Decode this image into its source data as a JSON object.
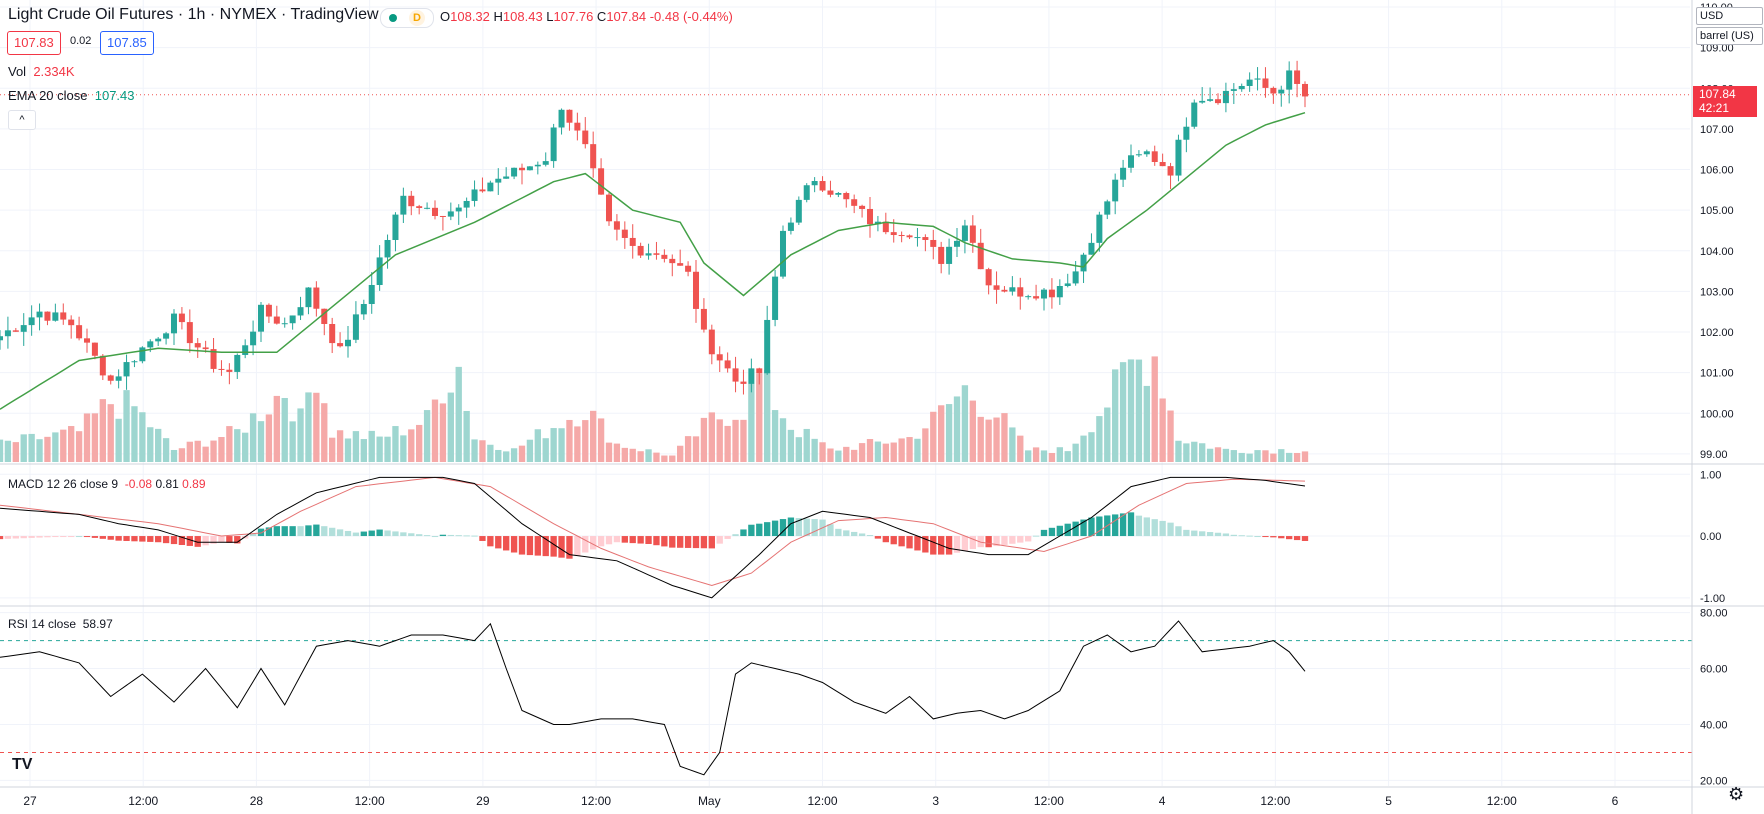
{
  "header": {
    "title": "Light Crude Oil Futures · 1h · NYMEX · TradingView",
    "status_letter": "D",
    "ohlc": {
      "o_label": "O",
      "o": "108.32",
      "h_label": "H",
      "h": "108.43",
      "l_label": "L",
      "l": "107.76",
      "c_label": "C",
      "c": "107.84",
      "chg": "-0.48 (-0.44%)"
    }
  },
  "quote": {
    "bid": "107.83",
    "spread": "0.02",
    "ask": "107.85"
  },
  "indicators": {
    "vol_label": "Vol",
    "vol_value": "2.334K",
    "ema_label": "EMA 20 close",
    "ema_value": "107.43",
    "macd_label": "MACD 12 26 close 9",
    "macd_hist": "-0.08",
    "macd_line": "0.81",
    "macd_signal": "0.89",
    "rsi_label": "RSI 14 close",
    "rsi_value": "58.97",
    "collapse_symbol": "^"
  },
  "price_scale": {
    "currency": "USD",
    "unit": "barrel (US)",
    "last_price": "107.84",
    "countdown": "42:21"
  },
  "logo": "TV",
  "settings_icon": "⚙",
  "colors": {
    "up": "#26a69a",
    "down": "#ef5350",
    "ema": "#43a047",
    "macd": "#000000",
    "signal": "#e57373"
  },
  "chart_data": {
    "type": "candlestick",
    "title": "Light Crude Oil Futures · 1h · NYMEX",
    "price_ticks": [
      "99.00",
      "100.00",
      "101.00",
      "102.00",
      "103.00",
      "104.00",
      "105.00",
      "106.00",
      "107.00",
      "108.00",
      "109.00",
      "110.00"
    ],
    "price_range": [
      98.8,
      110.1
    ],
    "macd_ticks": [
      "1.00",
      "0.00",
      "-1.00"
    ],
    "macd_range": [
      -1.1,
      1.15
    ],
    "rsi_ticks": [
      "80.00",
      "60.00",
      "40.00",
      "20.00"
    ],
    "rsi_range": [
      18,
      82
    ],
    "rsi_bands": [
      70,
      30
    ],
    "time_labels": [
      "27",
      "12:00",
      "28",
      "12:00",
      "29",
      "12:00",
      "May",
      "12:00",
      "3",
      "12:00",
      "4",
      "12:00",
      "5",
      "12:00",
      "6"
    ],
    "price_anchors": [
      [
        0,
        101.9
      ],
      [
        5,
        102.5
      ],
      [
        9,
        102.2
      ],
      [
        14,
        100.8
      ],
      [
        18,
        101.6
      ],
      [
        22,
        102.3
      ],
      [
        27,
        101.2
      ],
      [
        29,
        101.0
      ],
      [
        33,
        102.5
      ],
      [
        36,
        102.2
      ],
      [
        39,
        103.0
      ],
      [
        43,
        101.5
      ],
      [
        46,
        102.7
      ],
      [
        48,
        103.8
      ],
      [
        51,
        105.3
      ],
      [
        55,
        105.0
      ],
      [
        58,
        105.0
      ],
      [
        62,
        105.7
      ],
      [
        66,
        106.0
      ],
      [
        69,
        106.3
      ],
      [
        71,
        107.6
      ],
      [
        74,
        106.5
      ],
      [
        77,
        104.6
      ],
      [
        80,
        104.1
      ],
      [
        84,
        103.9
      ],
      [
        87,
        103.4
      ],
      [
        89,
        101.9
      ],
      [
        93,
        100.8
      ],
      [
        96,
        101.0
      ],
      [
        99,
        104.5
      ],
      [
        103,
        105.8
      ],
      [
        107,
        105.2
      ],
      [
        111,
        104.6
      ],
      [
        115,
        104.5
      ],
      [
        119,
        103.8
      ],
      [
        122,
        104.7
      ],
      [
        125,
        103.2
      ],
      [
        128,
        103.0
      ],
      [
        133,
        103.0
      ],
      [
        136,
        103.5
      ],
      [
        139,
        104.8
      ],
      [
        142,
        106.1
      ],
      [
        145,
        106.4
      ],
      [
        148,
        106.0
      ],
      [
        151,
        107.8
      ],
      [
        154,
        107.8
      ],
      [
        158,
        108.2
      ],
      [
        161,
        107.9
      ],
      [
        163,
        108.3
      ],
      [
        165,
        107.8
      ]
    ],
    "ema_anchors": [
      [
        0,
        100.1
      ],
      [
        10,
        101.3
      ],
      [
        20,
        101.6
      ],
      [
        28,
        101.5
      ],
      [
        35,
        101.5
      ],
      [
        40,
        102.3
      ],
      [
        50,
        103.9
      ],
      [
        60,
        104.7
      ],
      [
        70,
        105.7
      ],
      [
        74,
        105.9
      ],
      [
        80,
        105.0
      ],
      [
        86,
        104.7
      ],
      [
        89,
        103.7
      ],
      [
        94,
        102.9
      ],
      [
        100,
        103.9
      ],
      [
        106,
        104.5
      ],
      [
        112,
        104.7
      ],
      [
        118,
        104.6
      ],
      [
        122,
        104.2
      ],
      [
        128,
        103.8
      ],
      [
        134,
        103.7
      ],
      [
        137,
        103.6
      ],
      [
        140,
        104.3
      ],
      [
        145,
        105.0
      ],
      [
        150,
        105.8
      ],
      [
        155,
        106.6
      ],
      [
        160,
        107.1
      ],
      [
        165,
        107.4
      ]
    ],
    "volume_anchors": [
      [
        0,
        0.15
      ],
      [
        10,
        0.25
      ],
      [
        14,
        0.5
      ],
      [
        17,
        0.45
      ],
      [
        22,
        0.1
      ],
      [
        30,
        0.25
      ],
      [
        36,
        0.6
      ],
      [
        38,
        0.35
      ],
      [
        40,
        0.8
      ],
      [
        42,
        0.25
      ],
      [
        48,
        0.2
      ],
      [
        54,
        0.35
      ],
      [
        56,
        0.65
      ],
      [
        58,
        0.8
      ],
      [
        60,
        0.2
      ],
      [
        65,
        0.1
      ],
      [
        70,
        0.3
      ],
      [
        74,
        0.45
      ],
      [
        78,
        0.15
      ],
      [
        85,
        0.05
      ],
      [
        90,
        0.35
      ],
      [
        94,
        0.45
      ],
      [
        96,
        0.7
      ],
      [
        100,
        0.3
      ],
      [
        105,
        0.1
      ],
      [
        110,
        0.15
      ],
      [
        115,
        0.2
      ],
      [
        118,
        0.35
      ],
      [
        122,
        0.6
      ],
      [
        126,
        0.4
      ],
      [
        130,
        0.1
      ],
      [
        135,
        0.1
      ],
      [
        140,
        0.5
      ],
      [
        143,
        0.8
      ],
      [
        146,
        0.9
      ],
      [
        149,
        0.2
      ],
      [
        155,
        0.1
      ],
      [
        162,
        0.1
      ],
      [
        165,
        0.1
      ]
    ],
    "macd_anchors": [
      [
        0,
        0.45
      ],
      [
        10,
        0.35
      ],
      [
        15,
        0.2
      ],
      [
        20,
        0.1
      ],
      [
        25,
        -0.1
      ],
      [
        30,
        -0.1
      ],
      [
        35,
        0.35
      ],
      [
        40,
        0.7
      ],
      [
        48,
        0.95
      ],
      [
        56,
        0.95
      ],
      [
        60,
        0.85
      ],
      [
        66,
        0.2
      ],
      [
        72,
        -0.3
      ],
      [
        78,
        -0.4
      ],
      [
        85,
        -0.8
      ],
      [
        90,
        -1.0
      ],
      [
        96,
        -0.3
      ],
      [
        100,
        0.2
      ],
      [
        104,
        0.4
      ],
      [
        110,
        0.3
      ],
      [
        115,
        0.05
      ],
      [
        120,
        -0.2
      ],
      [
        125,
        -0.3
      ],
      [
        130,
        -0.3
      ],
      [
        138,
        0.3
      ],
      [
        143,
        0.8
      ],
      [
        148,
        0.95
      ],
      [
        155,
        0.95
      ],
      [
        160,
        0.9
      ],
      [
        165,
        0.81
      ]
    ],
    "signal_anchors": [
      [
        0,
        0.5
      ],
      [
        10,
        0.35
      ],
      [
        20,
        0.2
      ],
      [
        28,
        0.0
      ],
      [
        33,
        0.05
      ],
      [
        38,
        0.4
      ],
      [
        45,
        0.8
      ],
      [
        55,
        0.95
      ],
      [
        62,
        0.8
      ],
      [
        70,
        0.2
      ],
      [
        76,
        -0.2
      ],
      [
        82,
        -0.5
      ],
      [
        90,
        -0.8
      ],
      [
        95,
        -0.6
      ],
      [
        100,
        -0.1
      ],
      [
        106,
        0.25
      ],
      [
        112,
        0.3
      ],
      [
        118,
        0.2
      ],
      [
        124,
        -0.1
      ],
      [
        132,
        -0.25
      ],
      [
        138,
        0.0
      ],
      [
        144,
        0.5
      ],
      [
        150,
        0.85
      ],
      [
        156,
        0.92
      ],
      [
        165,
        0.89
      ]
    ],
    "rsi_anchors": [
      [
        0,
        64
      ],
      [
        5,
        66
      ],
      [
        10,
        62
      ],
      [
        14,
        50
      ],
      [
        18,
        58
      ],
      [
        22,
        48
      ],
      [
        26,
        60
      ],
      [
        30,
        46
      ],
      [
        33,
        60
      ],
      [
        36,
        47
      ],
      [
        40,
        68
      ],
      [
        44,
        70
      ],
      [
        48,
        68
      ],
      [
        52,
        72
      ],
      [
        56,
        72
      ],
      [
        60,
        70
      ],
      [
        62,
        76
      ],
      [
        64,
        60
      ],
      [
        66,
        45
      ],
      [
        70,
        40
      ],
      [
        72,
        40
      ],
      [
        76,
        42
      ],
      [
        80,
        42
      ],
      [
        84,
        40
      ],
      [
        86,
        25
      ],
      [
        89,
        22
      ],
      [
        91,
        30
      ],
      [
        93,
        58
      ],
      [
        95,
        62
      ],
      [
        98,
        60
      ],
      [
        101,
        58
      ],
      [
        104,
        55
      ],
      [
        108,
        48
      ],
      [
        112,
        44
      ],
      [
        115,
        50
      ],
      [
        118,
        42
      ],
      [
        121,
        44
      ],
      [
        124,
        45
      ],
      [
        127,
        42
      ],
      [
        130,
        45
      ],
      [
        134,
        52
      ],
      [
        137,
        68
      ],
      [
        140,
        72
      ],
      [
        143,
        66
      ],
      [
        146,
        68
      ],
      [
        149,
        77
      ],
      [
        152,
        66
      ],
      [
        155,
        67
      ],
      [
        158,
        68
      ],
      [
        161,
        70
      ],
      [
        163,
        66
      ],
      [
        165,
        59
      ]
    ],
    "bar_count": 166
  }
}
